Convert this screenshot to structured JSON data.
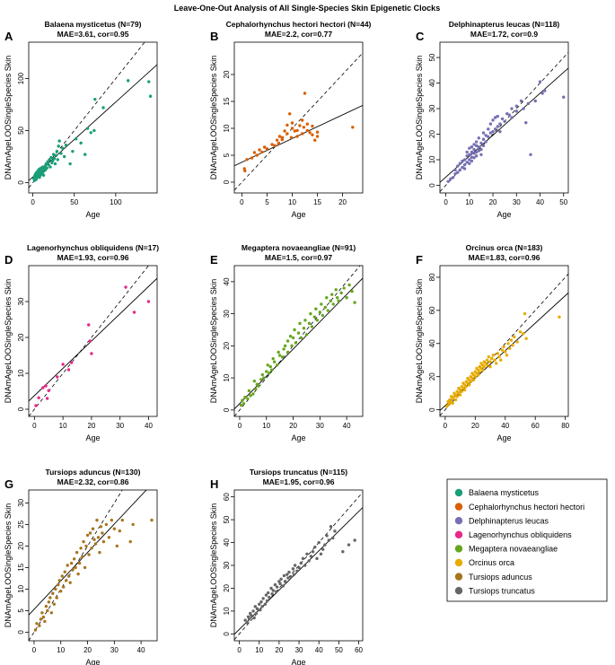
{
  "figure_title": "Leave-One-Out Analysis of All Single-Species Skin Epigenetic Clocks",
  "legend": [
    {
      "label": "Balaena mysticetus",
      "color": "#1b9e77"
    },
    {
      "label": "Cephalorhynchus hectori hectori",
      "color": "#d95f02"
    },
    {
      "label": "Delphinapterus leucas",
      "color": "#7570b3"
    },
    {
      "label": "Lagenorhynchus obliquidens",
      "color": "#e7298a"
    },
    {
      "label": "Megaptera novaeangliae",
      "color": "#66a61e"
    },
    {
      "label": "Orcinus orca",
      "color": "#e6ab02"
    },
    {
      "label": "Tursiops aduncus",
      "color": "#a6761d"
    },
    {
      "label": "Tursiops truncatus",
      "color": "#666666"
    }
  ],
  "chart_data": [
    {
      "letter": "A",
      "type": "scatter",
      "title": "Balaena mysticetus (N=79)",
      "stats": "MAE=3.61, cor=0.95",
      "xlabel": "Age",
      "ylabel": "DNAmAgeLOOSingleSpecies Skin",
      "color": "#1b9e77",
      "xlim": [
        -5,
        150
      ],
      "ylim": [
        -10,
        135
      ],
      "xticks": [
        0,
        50,
        100
      ],
      "yticks": [
        0,
        50,
        100
      ],
      "fit": {
        "slope": 0.72,
        "intercept": 5.4
      },
      "x": [
        1,
        2,
        2,
        3,
        3,
        4,
        4,
        5,
        5,
        5,
        6,
        6,
        7,
        7,
        8,
        8,
        8,
        9,
        9,
        10,
        10,
        11,
        11,
        12,
        12,
        13,
        13,
        14,
        15,
        15,
        16,
        17,
        18,
        19,
        20,
        21,
        22,
        23,
        24,
        25,
        26,
        27,
        28,
        29,
        30,
        31,
        32,
        34,
        36,
        38,
        40,
        45,
        48,
        52,
        58,
        63,
        66,
        70,
        74,
        75,
        85,
        115,
        140,
        142
      ],
      "y": [
        4,
        6,
        2,
        8,
        5,
        9,
        3,
        7,
        10,
        5,
        11,
        6,
        8,
        12,
        5,
        9,
        13,
        7,
        10,
        8,
        14,
        9,
        12,
        10,
        15,
        11,
        7,
        13,
        16,
        12,
        18,
        14,
        20,
        17,
        22,
        15,
        24,
        19,
        21,
        27,
        23,
        18,
        26,
        30,
        22,
        35,
        40,
        28,
        33,
        25,
        36,
        18,
        30,
        42,
        38,
        27,
        52,
        48,
        50,
        80,
        72,
        98,
        97,
        83
      ]
    },
    {
      "letter": "B",
      "type": "scatter",
      "title": "Cephalorhynchus hectori hectori (N=44)",
      "stats": "MAE=2.2, cor=0.77",
      "xlabel": "Age",
      "ylabel": "DNAmAgeLOOSingleSpecies Skin",
      "color": "#d95f02",
      "xlim": [
        -1.5,
        24
      ],
      "ylim": [
        -2,
        26
      ],
      "xticks": [
        0,
        5,
        10,
        15,
        20
      ],
      "yticks": [
        0,
        5,
        10,
        15,
        20
      ],
      "fit": {
        "slope": 0.44,
        "intercept": 3.7
      },
      "x": [
        0.5,
        0.6,
        1,
        2,
        2.5,
        3,
        3.5,
        4,
        4.5,
        5,
        6,
        6.5,
        7,
        7.3,
        7.5,
        8,
        8,
        8.5,
        9,
        9,
        9.5,
        9.8,
        10,
        10,
        10.5,
        11,
        11,
        11.5,
        12,
        12,
        12.3,
        12.5,
        13,
        13,
        13.5,
        14,
        14,
        14.5,
        15,
        15,
        22
      ],
      "y": [
        2.5,
        2.1,
        4.2,
        4.5,
        5.5,
        5,
        6,
        5.6,
        6.5,
        6.2,
        7,
        6.8,
        7.8,
        7.2,
        8.5,
        8.3,
        7.9,
        9.5,
        9,
        10.6,
        12.7,
        8.3,
        10,
        11,
        9.5,
        8.5,
        9.6,
        10.5,
        9,
        11.5,
        10.2,
        16.5,
        9.6,
        10.8,
        9.2,
        8.8,
        10.4,
        7.8,
        8.5,
        9.3,
        10.2
      ]
    },
    {
      "letter": "C",
      "type": "scatter",
      "title": "Delphinapterus leucas (N=118)",
      "stats": "MAE=1.72, cor=0.9",
      "xlabel": "Age",
      "ylabel": "DNAmAgeLOOSingleSpecies Skin",
      "color": "#7570b3",
      "xlim": [
        -2.5,
        52
      ],
      "ylim": [
        -3,
        56
      ],
      "xticks": [
        0,
        10,
        20,
        30,
        40,
        50
      ],
      "yticks": [
        0,
        10,
        20,
        30,
        40,
        50
      ],
      "fit": {
        "slope": 0.82,
        "intercept": 3.2
      },
      "x": [
        1,
        2,
        3,
        4,
        4,
        5,
        5,
        6,
        6,
        7,
        7,
        8,
        8,
        8,
        9,
        9,
        9,
        10,
        10,
        10,
        10,
        11,
        11,
        11,
        11,
        12,
        12,
        12,
        12,
        13,
        13,
        13,
        13,
        14,
        14,
        14,
        15,
        15,
        15,
        16,
        16,
        16,
        17,
        17,
        18,
        18,
        19,
        19,
        20,
        20,
        21,
        21,
        22,
        22,
        23,
        23,
        24,
        25,
        26,
        27,
        28,
        28,
        30,
        30,
        32,
        33,
        34,
        35,
        36,
        38,
        40,
        41,
        42,
        50
      ],
      "y": [
        1.5,
        2.5,
        3,
        6,
        4.5,
        5,
        7.5,
        6,
        8.5,
        7,
        9.5,
        8,
        10,
        6.5,
        9,
        11.5,
        13,
        10,
        12,
        14.5,
        8.5,
        11,
        13,
        15,
        9.5,
        12.5,
        14,
        16,
        10.8,
        13,
        15.5,
        11.5,
        17,
        13.5,
        15,
        18.5,
        14,
        16.5,
        12,
        15.5,
        18,
        20.5,
        17,
        19.5,
        19,
        22,
        20.5,
        24,
        21,
        25.5,
        22,
        26.5,
        23,
        27,
        24,
        21,
        26,
        25,
        28,
        27.5,
        30,
        26.5,
        31,
        29,
        33,
        30,
        24.5,
        32,
        12,
        33,
        40.5,
        36,
        37,
        34.5
      ]
    },
    {
      "letter": "D",
      "type": "scatter",
      "title": "Lagenorhynchus obliquidens (N=17)",
      "stats": "MAE=1.93, cor=0.96",
      "xlabel": "Age",
      "ylabel": "DNAmAgeLOOSingleSpecies Skin",
      "color": "#e7298a",
      "xlim": [
        -2,
        43
      ],
      "ylim": [
        -2,
        40
      ],
      "xticks": [
        0,
        10,
        20,
        30,
        40
      ],
      "yticks": [
        0,
        10,
        20,
        30
      ],
      "fit": {
        "slope": 0.76,
        "intercept": 3.8
      },
      "x": [
        0.5,
        1.5,
        3,
        4,
        4.5,
        5,
        8,
        10,
        12,
        13,
        19,
        19.5,
        20,
        32,
        35,
        40
      ],
      "y": [
        1,
        3.2,
        6,
        6.5,
        3,
        5.2,
        9,
        12.5,
        11,
        13,
        23.5,
        19,
        15.5,
        34,
        27,
        30
      ]
    },
    {
      "letter": "E",
      "type": "scatter",
      "title": "Megaptera novaeangliae (N=91)",
      "stats": "MAE=1.5, cor=0.97",
      "xlabel": "Age",
      "ylabel": "DNAmAgeLOOSingleSpecies Skin",
      "color": "#66a61e",
      "xlim": [
        -2,
        46
      ],
      "ylim": [
        -2,
        45
      ],
      "xticks": [
        0,
        10,
        20,
        30,
        40
      ],
      "yticks": [
        0,
        10,
        20,
        30,
        40
      ],
      "fit": {
        "slope": 0.85,
        "intercept": 2.0
      },
      "x": [
        0.5,
        1,
        1.5,
        2,
        3,
        3.5,
        4,
        5,
        5.5,
        6,
        6.5,
        7,
        8,
        8.5,
        9,
        10,
        10.5,
        11,
        11.5,
        12,
        12.5,
        13,
        14,
        14.5,
        15,
        16,
        16.5,
        17,
        18,
        18,
        19,
        19.5,
        20,
        20.5,
        21,
        22,
        22.5,
        23,
        24,
        24.5,
        25,
        26,
        26.5,
        27,
        28,
        28.5,
        29,
        30,
        30.5,
        31,
        32,
        32.5,
        33,
        34,
        34.5,
        35,
        36,
        36.5,
        37,
        38,
        39,
        40,
        41,
        42,
        43
      ],
      "y": [
        1.5,
        3,
        2,
        4,
        3.5,
        6,
        4.5,
        5,
        9,
        6.5,
        8,
        7.5,
        9.5,
        11,
        10,
        12,
        14,
        11.5,
        13.5,
        12.5,
        16,
        15,
        14,
        18,
        17,
        16.5,
        19,
        20,
        21.5,
        18,
        23,
        20,
        22.5,
        25,
        21,
        24,
        27,
        22.5,
        25.5,
        28,
        23.5,
        27,
        30,
        26,
        29,
        31.5,
        28,
        30.5,
        33,
        29.5,
        32,
        35,
        31,
        34,
        36,
        33,
        37.5,
        35,
        34,
        36.5,
        38,
        35,
        39,
        37,
        33.5
      ]
    },
    {
      "letter": "F",
      "type": "scatter",
      "title": "Orcinus orca (N=183)",
      "stats": "MAE=1.83, cor=0.96",
      "xlabel": "Age",
      "ylabel": "DNAmAgeLOOSingleSpecies Skin",
      "color": "#e6ab02",
      "xlim": [
        -3.5,
        82
      ],
      "ylim": [
        -4,
        87
      ],
      "xticks": [
        0,
        20,
        40,
        60,
        80
      ],
      "yticks": [
        0,
        20,
        40,
        60,
        80
      ],
      "fit": {
        "slope": 0.83,
        "intercept": 2.5
      },
      "x": [
        1,
        2,
        2,
        3,
        3,
        4,
        4,
        5,
        5,
        6,
        6,
        7,
        7,
        8,
        8,
        9,
        9,
        10,
        10,
        11,
        11,
        12,
        12,
        13,
        13,
        14,
        14,
        15,
        15,
        16,
        16,
        17,
        17,
        18,
        18,
        19,
        19,
        20,
        20,
        21,
        21,
        22,
        22,
        23,
        23,
        24,
        24,
        25,
        25,
        26,
        26,
        27,
        28,
        28,
        29,
        30,
        30,
        31,
        32,
        33,
        34,
        35,
        36,
        37,
        38,
        39,
        40,
        41,
        42,
        43,
        44,
        45,
        46,
        48,
        50,
        52,
        53,
        54,
        76
      ],
      "y": [
        2,
        3,
        5,
        4,
        6,
        5,
        8,
        7,
        4,
        8,
        10,
        9,
        6,
        11,
        8,
        10,
        13,
        12,
        9,
        14,
        11,
        13,
        16,
        15,
        12,
        17,
        14,
        16,
        19,
        18,
        15,
        20,
        17,
        19,
        22,
        21,
        18,
        23,
        20,
        22,
        25,
        24,
        21,
        26,
        23,
        25,
        28,
        27,
        24,
        29,
        26,
        28,
        30,
        27,
        32,
        29,
        26,
        31,
        33,
        30,
        28,
        34,
        32,
        30,
        36,
        38,
        35,
        33,
        40,
        37,
        42,
        39,
        44,
        41,
        47,
        46,
        58,
        43,
        56
      ]
    },
    {
      "letter": "G",
      "type": "scatter",
      "title": "Tursiops aduncus (N=130)",
      "stats": "MAE=2.32, cor=0.86",
      "xlabel": "Age",
      "ylabel": "DNAmAgeLOOSingleSpecies Skin",
      "color": "#a6761d",
      "xlim": [
        -2,
        46
      ],
      "ylim": [
        -2,
        33
      ],
      "xticks": [
        0,
        10,
        20,
        30,
        40
      ],
      "yticks": [
        0,
        5,
        10,
        15,
        20,
        25,
        30
      ],
      "fit": {
        "slope": 0.66,
        "intercept": 5.3
      },
      "x": [
        0.5,
        1,
        2,
        2.5,
        3,
        3.5,
        4,
        4.5,
        5,
        5.5,
        6,
        6.5,
        7,
        7.5,
        8,
        8.5,
        9,
        9.5,
        10,
        10.5,
        11,
        11.5,
        12,
        12.5,
        13,
        13.5,
        14,
        14.5,
        15,
        15.5,
        16,
        16.5,
        17,
        17.5,
        18,
        18.5,
        19,
        19.5,
        20,
        20.5,
        21,
        21.5,
        22,
        22.5,
        23,
        23.5,
        24,
        24.5,
        25,
        25.5,
        26,
        27,
        28,
        29,
        30,
        31,
        32,
        33,
        36,
        37,
        44
      ],
      "y": [
        0.5,
        2,
        1.5,
        3,
        4.5,
        3.5,
        2.5,
        6,
        5,
        7,
        8,
        4.5,
        9,
        6.5,
        10,
        8,
        11,
        12,
        9.5,
        13,
        10.5,
        14,
        12,
        15.5,
        13,
        11.5,
        16,
        14.5,
        17,
        15,
        18.5,
        13.5,
        16,
        19.5,
        17.5,
        21,
        15,
        20,
        22.5,
        18,
        23,
        19.5,
        24,
        21.5,
        20.5,
        26,
        22,
        18.5,
        24.5,
        23,
        21,
        25,
        22,
        26,
        24,
        20,
        23.5,
        26,
        21,
        25,
        26
      ]
    },
    {
      "letter": "H",
      "type": "scatter",
      "title": "Tursiops truncatus (N=115)",
      "stats": "MAE=1.95, cor=0.96",
      "xlabel": "Age",
      "ylabel": "DNAmAgeLOOSingleSpecies Skin",
      "color": "#666666",
      "xlim": [
        -2.5,
        62
      ],
      "ylim": [
        -3,
        63
      ],
      "xticks": [
        0,
        10,
        20,
        30,
        40,
        50,
        60
      ],
      "yticks": [
        0,
        10,
        20,
        30,
        40,
        50,
        60
      ],
      "fit": {
        "slope": 0.86,
        "intercept": 2.0
      },
      "x": [
        3,
        4,
        4.5,
        5,
        5.5,
        6,
        7,
        7.5,
        8,
        8.5,
        9,
        10,
        10.5,
        11,
        11.5,
        12,
        13,
        13.5,
        14,
        14.5,
        15,
        16,
        16.5,
        17,
        18,
        18.5,
        19,
        20,
        20.5,
        21,
        22,
        22.5,
        23,
        24,
        24.5,
        25,
        26,
        27,
        27.5,
        28,
        29,
        30,
        31,
        32,
        33,
        34,
        35,
        36,
        37,
        38,
        39,
        40,
        41,
        42,
        43,
        44,
        45,
        46,
        47,
        48,
        52,
        55,
        58
      ],
      "y": [
        6,
        5,
        7.5,
        6.5,
        9,
        8,
        10,
        7,
        12,
        9,
        11,
        13,
        10.5,
        14,
        12,
        15.5,
        13,
        17,
        14.5,
        18,
        16,
        20,
        17.5,
        19,
        21.5,
        18.5,
        20.5,
        23,
        22,
        24,
        21,
        25.5,
        23,
        26,
        24.5,
        27,
        25,
        28.5,
        26,
        30,
        27.5,
        29,
        31,
        33,
        30,
        35,
        32,
        34,
        36,
        38,
        33,
        40,
        35,
        37,
        39,
        43,
        41,
        47,
        42,
        45,
        36,
        39,
        41
      ]
    }
  ]
}
